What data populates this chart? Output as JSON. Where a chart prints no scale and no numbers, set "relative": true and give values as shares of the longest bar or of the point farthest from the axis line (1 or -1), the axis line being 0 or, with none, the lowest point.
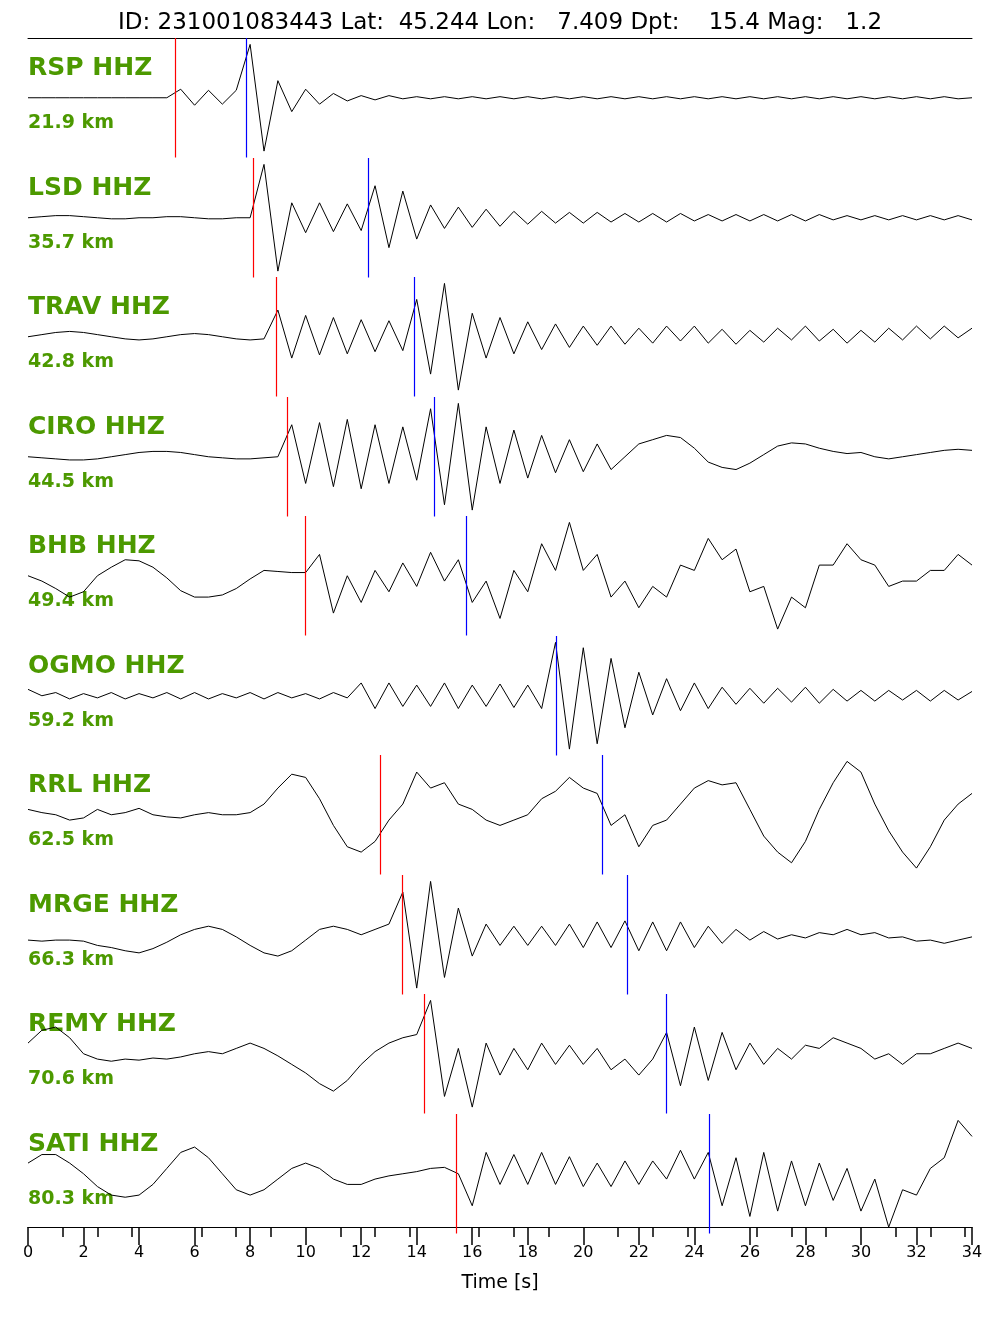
{
  "chart_data": [
    {
      "type": "line",
      "title": "ID: 231001083443 Lat:  45.244 Lon:   7.409 Dpt:    15.4 Mag:   1.2",
      "ylabel": "RSP HHZ",
      "annotations": [
        "21.9 km"
      ],
      "relative": true,
      "marker": "none",
      "tick_labels": false,
      "xlim": [
        0,
        34
      ],
      "x": [
        0,
        0.5,
        1,
        1.5,
        2,
        2.5,
        3,
        3.5,
        4,
        4.5,
        5,
        5.5,
        6,
        6.5,
        7,
        7.5,
        8,
        8.5,
        9,
        9.5,
        10,
        10.5,
        11,
        11.5,
        12,
        12.5,
        13,
        13.5,
        14,
        14.5,
        15,
        15.5,
        16,
        16.5,
        17,
        17.5,
        18,
        18.5,
        19,
        19.5,
        20,
        20.5,
        21,
        21.5,
        22,
        22.5,
        23,
        23.5,
        24,
        24.5,
        25,
        25.5,
        26,
        26.5,
        27,
        27.5,
        28,
        28.5,
        29,
        29.5,
        30,
        30.5,
        31,
        31.5,
        32,
        32.5,
        33,
        33.5,
        34
      ],
      "series": [
        {
          "color": "#000000",
          "values": [
            0.5,
            0.5,
            0.5,
            0.5,
            0.5,
            0.5,
            0.5,
            0.5,
            0.5,
            0.5,
            0.5,
            0.58,
            0.43,
            0.57,
            0.44,
            0.57,
            1,
            0,
            0.66,
            0.37,
            0.58,
            0.44,
            0.54,
            0.47,
            0.52,
            0.48,
            0.52,
            0.49,
            0.51,
            0.49,
            0.51,
            0.49,
            0.51,
            0.49,
            0.51,
            0.49,
            0.51,
            0.49,
            0.51,
            0.49,
            0.51,
            0.49,
            0.51,
            0.49,
            0.51,
            0.49,
            0.51,
            0.49,
            0.51,
            0.49,
            0.51,
            0.49,
            0.51,
            0.49,
            0.51,
            0.49,
            0.51,
            0.49,
            0.51,
            0.49,
            0.51,
            0.49,
            0.51,
            0.49,
            0.51,
            0.49,
            0.51,
            0.49,
            0.5
          ]
        }
      ],
      "ref_lines": [
        {
          "axis": "x",
          "value": 5.3,
          "color": "#ff0000"
        },
        {
          "axis": "x",
          "value": 7.85,
          "color": "#0000ff"
        }
      ]
    },
    {
      "type": "line",
      "ylabel": "LSD HHZ",
      "annotations": [
        "35.7 km"
      ],
      "relative": true,
      "marker": "none",
      "tick_labels": false,
      "xlim": [
        0,
        34
      ],
      "x": [
        0,
        0.5,
        1,
        1.5,
        2,
        2.5,
        3,
        3.5,
        4,
        4.5,
        5,
        5.5,
        6,
        6.5,
        7,
        7.5,
        8,
        8.5,
        9,
        9.5,
        10,
        10.5,
        11,
        11.5,
        12,
        12.5,
        13,
        13.5,
        14,
        14.5,
        15,
        15.5,
        16,
        16.5,
        17,
        17.5,
        18,
        18.5,
        19,
        19.5,
        20,
        20.5,
        21,
        21.5,
        22,
        22.5,
        23,
        23.5,
        24,
        24.5,
        25,
        25.5,
        26,
        26.5,
        27,
        27.5,
        28,
        28.5,
        29,
        29.5,
        30,
        30.5,
        31,
        31.5,
        32,
        32.5,
        33,
        33.5,
        34
      ],
      "series": [
        {
          "color": "#000000",
          "values": [
            0.5,
            0.51,
            0.52,
            0.52,
            0.51,
            0.5,
            0.49,
            0.49,
            0.5,
            0.5,
            0.51,
            0.51,
            0.5,
            0.49,
            0.49,
            0.5,
            0.5,
            1,
            0,
            0.64,
            0.36,
            0.64,
            0.37,
            0.63,
            0.38,
            0.8,
            0.22,
            0.75,
            0.3,
            0.62,
            0.4,
            0.6,
            0.41,
            0.58,
            0.42,
            0.56,
            0.44,
            0.56,
            0.45,
            0.55,
            0.45,
            0.55,
            0.46,
            0.54,
            0.46,
            0.54,
            0.46,
            0.54,
            0.47,
            0.53,
            0.47,
            0.53,
            0.47,
            0.53,
            0.47,
            0.53,
            0.47,
            0.53,
            0.48,
            0.52,
            0.48,
            0.52,
            0.48,
            0.52,
            0.48,
            0.52,
            0.48,
            0.52,
            0.48
          ]
        }
      ],
      "ref_lines": [
        {
          "axis": "x",
          "value": 8.1,
          "color": "#ff0000"
        },
        {
          "axis": "x",
          "value": 12.25,
          "color": "#0000ff"
        }
      ]
    },
    {
      "type": "line",
      "ylabel": "TRAV HHZ",
      "annotations": [
        "42.8 km"
      ],
      "relative": true,
      "marker": "none",
      "tick_labels": false,
      "xlim": [
        0,
        34
      ],
      "x": [
        0,
        0.5,
        1,
        1.5,
        2,
        2.5,
        3,
        3.5,
        4,
        4.5,
        5,
        5.5,
        6,
        6.5,
        7,
        7.5,
        8,
        8.5,
        9,
        9.5,
        10,
        10.5,
        11,
        11.5,
        12,
        12.5,
        13,
        13.5,
        14,
        14.5,
        15,
        15.5,
        16,
        16.5,
        17,
        17.5,
        18,
        18.5,
        19,
        19.5,
        20,
        20.5,
        21,
        21.5,
        22,
        22.5,
        23,
        23.5,
        24,
        24.5,
        25,
        25.5,
        26,
        26.5,
        27,
        27.5,
        28,
        28.5,
        29,
        29.5,
        30,
        30.5,
        31,
        31.5,
        32,
        32.5,
        33,
        33.5,
        34
      ],
      "series": [
        {
          "color": "#000000",
          "values": [
            0.5,
            0.52,
            0.54,
            0.55,
            0.54,
            0.52,
            0.5,
            0.48,
            0.47,
            0.48,
            0.5,
            0.52,
            0.53,
            0.52,
            0.5,
            0.48,
            0.47,
            0.48,
            0.75,
            0.3,
            0.7,
            0.33,
            0.68,
            0.34,
            0.66,
            0.36,
            0.65,
            0.37,
            0.85,
            0.15,
            1,
            0,
            0.72,
            0.3,
            0.68,
            0.34,
            0.64,
            0.38,
            0.62,
            0.4,
            0.6,
            0.42,
            0.6,
            0.43,
            0.58,
            0.44,
            0.6,
            0.46,
            0.6,
            0.44,
            0.57,
            0.43,
            0.56,
            0.45,
            0.58,
            0.47,
            0.6,
            0.46,
            0.57,
            0.44,
            0.56,
            0.45,
            0.58,
            0.47,
            0.6,
            0.48,
            0.6,
            0.49,
            0.58
          ]
        }
      ],
      "ref_lines": [
        {
          "axis": "x",
          "value": 8.93,
          "color": "#ff0000"
        },
        {
          "axis": "x",
          "value": 13.9,
          "color": "#0000ff"
        }
      ]
    },
    {
      "type": "line",
      "ylabel": "CIRO HHZ",
      "annotations": [
        "44.5 km"
      ],
      "relative": true,
      "marker": "none",
      "tick_labels": false,
      "xlim": [
        0,
        34
      ],
      "x": [
        0,
        0.5,
        1,
        1.5,
        2,
        2.5,
        3,
        3.5,
        4,
        4.5,
        5,
        5.5,
        6,
        6.5,
        7,
        7.5,
        8,
        8.5,
        9,
        9.5,
        10,
        10.5,
        11,
        11.5,
        12,
        12.5,
        13,
        13.5,
        14,
        14.5,
        15,
        15.5,
        16,
        16.5,
        17,
        17.5,
        18,
        18.5,
        19,
        19.5,
        20,
        20.5,
        21,
        21.5,
        22,
        22.5,
        23,
        23.5,
        24,
        24.5,
        25,
        25.5,
        26,
        26.5,
        27,
        27.5,
        28,
        28.5,
        29,
        29.5,
        30,
        30.5,
        31,
        31.5,
        32,
        32.5,
        33,
        33.5,
        34
      ],
      "series": [
        {
          "color": "#000000",
          "values": [
            0.5,
            0.49,
            0.48,
            0.47,
            0.47,
            0.48,
            0.5,
            0.52,
            0.54,
            0.55,
            0.55,
            0.54,
            0.52,
            0.5,
            0.49,
            0.48,
            0.48,
            0.49,
            0.5,
            0.8,
            0.25,
            0.82,
            0.22,
            0.85,
            0.2,
            0.8,
            0.25,
            0.78,
            0.28,
            0.95,
            0.05,
            1,
            0,
            0.78,
            0.25,
            0.75,
            0.3,
            0.7,
            0.35,
            0.66,
            0.36,
            0.62,
            0.38,
            0.5,
            0.62,
            0.66,
            0.7,
            0.68,
            0.58,
            0.45,
            0.4,
            0.38,
            0.44,
            0.52,
            0.6,
            0.63,
            0.62,
            0.58,
            0.55,
            0.53,
            0.54,
            0.5,
            0.48,
            0.5,
            0.52,
            0.54,
            0.56,
            0.57,
            0.56
          ]
        }
      ],
      "ref_lines": [
        {
          "axis": "x",
          "value": 9.33,
          "color": "#ff0000"
        },
        {
          "axis": "x",
          "value": 14.63,
          "color": "#0000ff"
        }
      ]
    },
    {
      "type": "line",
      "ylabel": "BHB HHZ",
      "annotations": [
        "49.4 km"
      ],
      "relative": true,
      "marker": "none",
      "tick_labels": false,
      "xlim": [
        0,
        34
      ],
      "x": [
        0,
        0.5,
        1,
        1.5,
        2,
        2.5,
        3,
        3.5,
        4,
        4.5,
        5,
        5.5,
        6,
        6.5,
        7,
        7.5,
        8,
        8.5,
        9,
        9.5,
        10,
        10.5,
        11,
        11.5,
        12,
        12.5,
        13,
        13.5,
        14,
        14.5,
        15,
        15.5,
        16,
        16.5,
        17,
        17.5,
        18,
        18.5,
        19,
        19.5,
        20,
        20.5,
        21,
        21.5,
        22,
        22.5,
        23,
        23.5,
        24,
        24.5,
        25,
        25.5,
        26,
        26.5,
        27,
        27.5,
        28,
        28.5,
        29,
        29.5,
        30,
        30.5,
        31,
        31.5,
        32,
        32.5,
        33,
        33.5,
        34
      ],
      "series": [
        {
          "color": "#000000",
          "values": [
            0.5,
            0.45,
            0.38,
            0.3,
            0.35,
            0.5,
            0.58,
            0.65,
            0.64,
            0.58,
            0.48,
            0.36,
            0.3,
            0.3,
            0.32,
            0.38,
            0.47,
            0.55,
            0.54,
            0.53,
            0.53,
            0.7,
            0.15,
            0.5,
            0.25,
            0.55,
            0.35,
            0.62,
            0.4,
            0.72,
            0.45,
            0.65,
            0.25,
            0.45,
            0.1,
            0.55,
            0.35,
            0.8,
            0.55,
            1,
            0.55,
            0.7,
            0.3,
            0.45,
            0.2,
            0.4,
            0.3,
            0.6,
            0.55,
            0.85,
            0.65,
            0.75,
            0.35,
            0.4,
            0,
            0.3,
            0.2,
            0.6,
            0.6,
            0.8,
            0.65,
            0.6,
            0.4,
            0.45,
            0.45,
            0.55,
            0.55,
            0.7,
            0.6
          ]
        }
      ],
      "ref_lines": [
        {
          "axis": "x",
          "value": 9.98,
          "color": "#ff0000"
        },
        {
          "axis": "x",
          "value": 15.78,
          "color": "#0000ff"
        }
      ]
    },
    {
      "type": "line",
      "ylabel": "OGMO HHZ",
      "annotations": [
        "59.2 km"
      ],
      "relative": true,
      "marker": "none",
      "tick_labels": false,
      "xlim": [
        0,
        34
      ],
      "x": [
        0,
        0.5,
        1,
        1.5,
        2,
        2.5,
        3,
        3.5,
        4,
        4.5,
        5,
        5.5,
        6,
        6.5,
        7,
        7.5,
        8,
        8.5,
        9,
        9.5,
        10,
        10.5,
        11,
        11.5,
        12,
        12.5,
        13,
        13.5,
        14,
        14.5,
        15,
        15.5,
        16,
        16.5,
        17,
        17.5,
        18,
        18.5,
        19,
        19.5,
        20,
        20.5,
        21,
        21.5,
        22,
        22.5,
        23,
        23.5,
        24,
        24.5,
        25,
        25.5,
        26,
        26.5,
        27,
        27.5,
        28,
        28.5,
        29,
        29.5,
        30,
        30.5,
        31,
        31.5,
        32,
        32.5,
        33,
        33.5,
        34
      ],
      "series": [
        {
          "color": "#000000",
          "values": [
            0.56,
            0.5,
            0.53,
            0.47,
            0.52,
            0.48,
            0.53,
            0.47,
            0.52,
            0.48,
            0.53,
            0.47,
            0.53,
            0.47,
            0.52,
            0.48,
            0.53,
            0.47,
            0.53,
            0.48,
            0.52,
            0.47,
            0.53,
            0.48,
            0.62,
            0.38,
            0.62,
            0.4,
            0.6,
            0.4,
            0.62,
            0.38,
            0.6,
            0.4,
            0.61,
            0.39,
            0.6,
            0.38,
            1,
            0,
            0.95,
            0.05,
            0.85,
            0.2,
            0.72,
            0.32,
            0.66,
            0.36,
            0.62,
            0.38,
            0.58,
            0.42,
            0.57,
            0.43,
            0.57,
            0.44,
            0.58,
            0.43,
            0.56,
            0.45,
            0.55,
            0.45,
            0.55,
            0.46,
            0.55,
            0.45,
            0.55,
            0.46,
            0.54
          ]
        }
      ],
      "ref_lines": [
        {
          "axis": "x",
          "value": 19.02,
          "color": "#0000ff"
        }
      ]
    },
    {
      "type": "line",
      "ylabel": "RRL HHZ",
      "annotations": [
        "62.5 km"
      ],
      "relative": true,
      "marker": "none",
      "tick_labels": false,
      "xlim": [
        0,
        34
      ],
      "x": [
        0,
        0.5,
        1,
        1.5,
        2,
        2.5,
        3,
        3.5,
        4,
        4.5,
        5,
        5.5,
        6,
        6.5,
        7,
        7.5,
        8,
        8.5,
        9,
        9.5,
        10,
        10.5,
        11,
        11.5,
        12,
        12.5,
        13,
        13.5,
        14,
        14.5,
        15,
        15.5,
        16,
        16.5,
        17,
        17.5,
        18,
        18.5,
        19,
        19.5,
        20,
        20.5,
        21,
        21.5,
        22,
        22.5,
        23,
        23.5,
        24,
        24.5,
        25,
        25.5,
        26,
        26.5,
        27,
        27.5,
        28,
        28.5,
        29,
        29.5,
        30,
        30.5,
        31,
        31.5,
        32,
        32.5,
        33,
        33.5,
        34
      ],
      "series": [
        {
          "color": "#000000",
          "values": [
            0.55,
            0.52,
            0.5,
            0.45,
            0.47,
            0.55,
            0.5,
            0.52,
            0.56,
            0.5,
            0.48,
            0.47,
            0.5,
            0.52,
            0.5,
            0.5,
            0.52,
            0.6,
            0.75,
            0.88,
            0.85,
            0.65,
            0.4,
            0.2,
            0.15,
            0.25,
            0.45,
            0.6,
            0.9,
            0.75,
            0.8,
            0.6,
            0.55,
            0.45,
            0.4,
            0.45,
            0.5,
            0.65,
            0.72,
            0.85,
            0.75,
            0.7,
            0.4,
            0.5,
            0.2,
            0.4,
            0.45,
            0.6,
            0.75,
            0.82,
            0.78,
            0.8,
            0.55,
            0.3,
            0.15,
            0.05,
            0.25,
            0.55,
            0.8,
            1,
            0.9,
            0.6,
            0.35,
            0.15,
            0,
            0.2,
            0.45,
            0.6,
            0.7
          ]
        }
      ],
      "ref_lines": [
        {
          "axis": "x",
          "value": 12.68,
          "color": "#ff0000"
        },
        {
          "axis": "x",
          "value": 20.68,
          "color": "#0000ff"
        }
      ]
    },
    {
      "type": "line",
      "ylabel": "MRGE HHZ",
      "annotations": [
        "66.3 km"
      ],
      "relative": true,
      "marker": "none",
      "tick_labels": false,
      "xlim": [
        0,
        34
      ],
      "x": [
        0,
        0.5,
        1,
        1.5,
        2,
        2.5,
        3,
        3.5,
        4,
        4.5,
        5,
        5.5,
        6,
        6.5,
        7,
        7.5,
        8,
        8.5,
        9,
        9.5,
        10,
        10.5,
        11,
        11.5,
        12,
        12.5,
        13,
        13.5,
        14,
        14.5,
        15,
        15.5,
        16,
        16.5,
        17,
        17.5,
        18,
        18.5,
        19,
        19.5,
        20,
        20.5,
        21,
        21.5,
        22,
        22.5,
        23,
        23.5,
        24,
        24.5,
        25,
        25.5,
        26,
        26.5,
        27,
        27.5,
        28,
        28.5,
        29,
        29.5,
        30,
        30.5,
        31,
        31.5,
        32,
        32.5,
        33,
        33.5,
        34
      ],
      "series": [
        {
          "color": "#000000",
          "values": [
            0.45,
            0.44,
            0.45,
            0.45,
            0.44,
            0.4,
            0.38,
            0.35,
            0.33,
            0.37,
            0.43,
            0.5,
            0.55,
            0.58,
            0.55,
            0.48,
            0.4,
            0.33,
            0.3,
            0.35,
            0.45,
            0.55,
            0.58,
            0.55,
            0.5,
            0.55,
            0.6,
            0.9,
            0,
            1,
            0.1,
            0.75,
            0.3,
            0.6,
            0.4,
            0.58,
            0.4,
            0.58,
            0.4,
            0.6,
            0.38,
            0.62,
            0.38,
            0.63,
            0.35,
            0.62,
            0.35,
            0.62,
            0.38,
            0.58,
            0.42,
            0.55,
            0.45,
            0.53,
            0.46,
            0.5,
            0.47,
            0.52,
            0.5,
            0.55,
            0.5,
            0.52,
            0.47,
            0.48,
            0.44,
            0.45,
            0.42,
            0.45,
            0.48
          ]
        }
      ],
      "ref_lines": [
        {
          "axis": "x",
          "value": 13.47,
          "color": "#ff0000"
        },
        {
          "axis": "x",
          "value": 21.58,
          "color": "#0000ff"
        }
      ]
    },
    {
      "type": "line",
      "ylabel": "REMY HHZ",
      "annotations": [
        "70.6 km"
      ],
      "relative": true,
      "marker": "none",
      "tick_labels": false,
      "xlim": [
        0,
        34
      ],
      "x": [
        0,
        0.5,
        1,
        1.5,
        2,
        2.5,
        3,
        3.5,
        4,
        4.5,
        5,
        5.5,
        6,
        6.5,
        7,
        7.5,
        8,
        8.5,
        9,
        9.5,
        10,
        10.5,
        11,
        11.5,
        12,
        12.5,
        13,
        13.5,
        14,
        14.5,
        15,
        15.5,
        16,
        16.5,
        17,
        17.5,
        18,
        18.5,
        19,
        19.5,
        20,
        20.5,
        21,
        21.5,
        22,
        22.5,
        23,
        23.5,
        24,
        24.5,
        25,
        25.5,
        26,
        26.5,
        27,
        27.5,
        28,
        28.5,
        29,
        29.5,
        30,
        30.5,
        31,
        31.5,
        32,
        32.5,
        33,
        33.5,
        34
      ],
      "series": [
        {
          "color": "#000000",
          "values": [
            0.6,
            0.72,
            0.75,
            0.65,
            0.5,
            0.45,
            0.43,
            0.45,
            0.44,
            0.46,
            0.45,
            0.47,
            0.5,
            0.52,
            0.5,
            0.55,
            0.6,
            0.55,
            0.48,
            0.4,
            0.32,
            0.22,
            0.15,
            0.25,
            0.4,
            0.52,
            0.6,
            0.65,
            0.68,
            1,
            0.1,
            0.55,
            0,
            0.6,
            0.3,
            0.55,
            0.35,
            0.6,
            0.4,
            0.58,
            0.4,
            0.55,
            0.35,
            0.45,
            0.3,
            0.45,
            0.7,
            0.2,
            0.75,
            0.25,
            0.7,
            0.35,
            0.6,
            0.4,
            0.55,
            0.45,
            0.58,
            0.55,
            0.65,
            0.6,
            0.55,
            0.45,
            0.5,
            0.4,
            0.5,
            0.5,
            0.55,
            0.6,
            0.55
          ]
        }
      ],
      "ref_lines": [
        {
          "axis": "x",
          "value": 14.27,
          "color": "#ff0000"
        },
        {
          "axis": "x",
          "value": 22.98,
          "color": "#0000ff"
        }
      ]
    },
    {
      "type": "line",
      "ylabel": "SATI HHZ",
      "annotations": [
        "80.3 km"
      ],
      "xlabel": "Time [s]",
      "relative": true,
      "marker": "none",
      "tick_labels": "x",
      "xlim": [
        0,
        34
      ],
      "xticks": [
        0,
        2,
        4,
        6,
        8,
        10,
        12,
        14,
        16,
        18,
        20,
        22,
        24,
        26,
        28,
        30,
        32,
        34
      ],
      "x": [
        0,
        0.5,
        1,
        1.5,
        2,
        2.5,
        3,
        3.5,
        4,
        4.5,
        5,
        5.5,
        6,
        6.5,
        7,
        7.5,
        8,
        8.5,
        9,
        9.5,
        10,
        10.5,
        11,
        11.5,
        12,
        12.5,
        13,
        13.5,
        14,
        14.5,
        15,
        15.5,
        16,
        16.5,
        17,
        17.5,
        18,
        18.5,
        19,
        19.5,
        20,
        20.5,
        21,
        21.5,
        22,
        22.5,
        23,
        23.5,
        24,
        24.5,
        25,
        25.5,
        26,
        26.5,
        27,
        27.5,
        28,
        28.5,
        29,
        29.5,
        30,
        30.5,
        31,
        31.5,
        32,
        32.5,
        33,
        33.5,
        34
      ],
      "series": [
        {
          "color": "#000000",
          "values": [
            0.6,
            0.68,
            0.68,
            0.6,
            0.5,
            0.38,
            0.3,
            0.28,
            0.3,
            0.4,
            0.55,
            0.7,
            0.75,
            0.65,
            0.5,
            0.35,
            0.3,
            0.35,
            0.45,
            0.55,
            0.6,
            0.55,
            0.45,
            0.4,
            0.4,
            0.45,
            0.48,
            0.5,
            0.52,
            0.55,
            0.56,
            0.5,
            0.2,
            0.7,
            0.4,
            0.68,
            0.4,
            0.7,
            0.4,
            0.66,
            0.38,
            0.6,
            0.38,
            0.62,
            0.4,
            0.62,
            0.45,
            0.72,
            0.45,
            0.7,
            0.2,
            0.65,
            0.1,
            0.7,
            0.15,
            0.62,
            0.2,
            0.6,
            0.25,
            0.55,
            0.15,
            0.45,
            0,
            0.35,
            0.3,
            0.55,
            0.65,
            1,
            0.85
          ]
        }
      ],
      "ref_lines": [
        {
          "axis": "x",
          "value": 15.42,
          "color": "#ff0000"
        },
        {
          "axis": "x",
          "value": 24.53,
          "color": "#0000ff"
        }
      ]
    }
  ]
}
